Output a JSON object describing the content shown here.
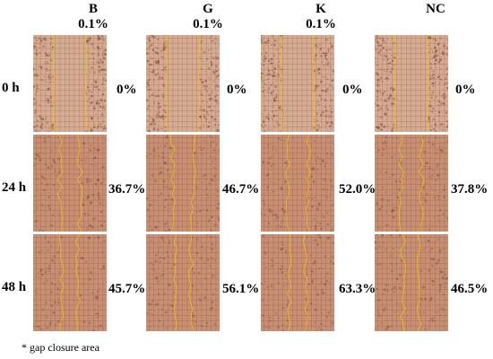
{
  "columns": [
    {
      "name": "B",
      "conc": "0.1%"
    },
    {
      "name": "G",
      "conc": "0.1%"
    },
    {
      "name": "K",
      "conc": "0.1%"
    },
    {
      "name": "NC",
      "conc": ""
    }
  ],
  "rows": [
    {
      "label": "0 h",
      "values": [
        "0%",
        "0%",
        "0%",
        "0%"
      ]
    },
    {
      "label": "24 h",
      "values": [
        "36.7%",
        "46.7%",
        "52.0%",
        "37.8%"
      ]
    },
    {
      "label": "48 h",
      "values": [
        "45.7%",
        "56.1%",
        "63.3%",
        "46.5%"
      ]
    }
  ],
  "footnote": "* gap closure area",
  "colors": {
    "tissue": "#c98f73",
    "tissue_dark": "#8f5a44",
    "gap": "#d7ab92",
    "grid": "#5b3426",
    "edge_line": "#f5c400"
  }
}
